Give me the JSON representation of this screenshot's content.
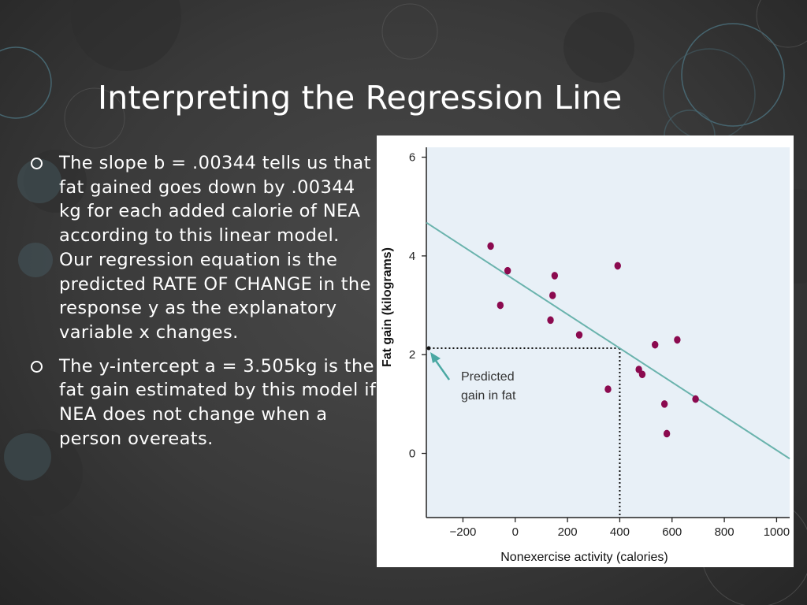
{
  "slide": {
    "title": "Interpreting the Regression Line",
    "bullets": [
      "The slope b = .00344 tells us that fat gained goes down by .00344 kg for each added calorie of NEA according to this linear model.  Our regression equation is the predicted RATE OF CHANGE in the response y as the explanatory variable x changes.",
      "The y-intercept a = 3.505kg is the fat gain estimated by this model if NEA does not change when a person overeats."
    ]
  },
  "colors": {
    "background": "#3a3a3a",
    "plot_area": "#e8f0f7",
    "points": "#8b0a4f",
    "regression_line": "#6ab3ad",
    "arrow": "#4aa8a3"
  },
  "chart_data": {
    "type": "scatter",
    "xlabel": "Nonexercise activity (calories)",
    "ylabel": "Fat gain (kilograms)",
    "xlim": [
      -340,
      1050
    ],
    "ylim": [
      -1.3,
      6.2
    ],
    "x_ticks": [
      -200,
      0,
      200,
      400,
      600,
      800,
      1000
    ],
    "x_tick_labels": [
      "−200",
      "0",
      "200",
      "400",
      "600",
      "800",
      "1000"
    ],
    "y_ticks": [
      0,
      2,
      4,
      6
    ],
    "y_tick_labels": [
      "0",
      "2",
      "4",
      "6"
    ],
    "points": [
      {
        "x": -94,
        "y": 4.2
      },
      {
        "x": -57,
        "y": 3.0
      },
      {
        "x": -29,
        "y": 3.7
      },
      {
        "x": 135,
        "y": 2.7
      },
      {
        "x": 143,
        "y": 3.2
      },
      {
        "x": 151,
        "y": 3.6
      },
      {
        "x": 245,
        "y": 2.4
      },
      {
        "x": 355,
        "y": 1.3
      },
      {
        "x": 392,
        "y": 3.8
      },
      {
        "x": 473,
        "y": 1.7
      },
      {
        "x": 486,
        "y": 1.6
      },
      {
        "x": 535,
        "y": 2.2
      },
      {
        "x": 571,
        "y": 1.0
      },
      {
        "x": 580,
        "y": 0.4
      },
      {
        "x": 620,
        "y": 2.3
      },
      {
        "x": 690,
        "y": 1.1
      }
    ],
    "regression_line": {
      "intercept": 3.505,
      "slope": -0.00344
    },
    "prediction": {
      "x": 400,
      "y": 2.13
    },
    "annotation": [
      "Predicted",
      "gain in fat"
    ],
    "grid": false
  }
}
